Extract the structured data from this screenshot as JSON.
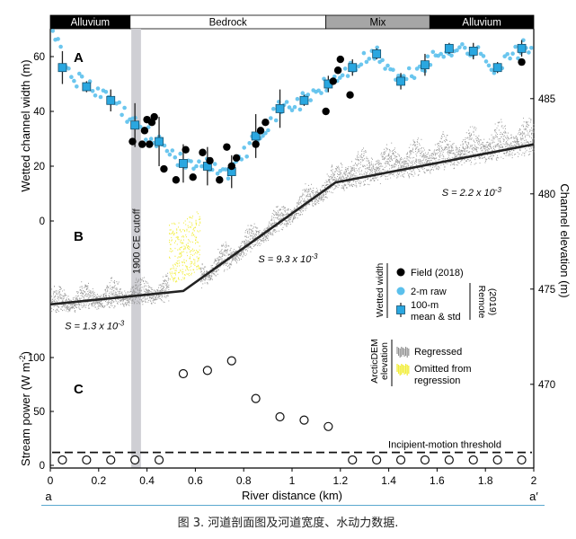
{
  "chart_data": {
    "type": "scatter",
    "xlabel": "River distance (km)",
    "x_start_label": "a",
    "x_end_label": "a′",
    "xlim": [
      0,
      2
    ],
    "x_ticks": [
      0,
      0.2,
      0.4,
      0.6,
      0.8,
      1,
      1.2,
      1.4,
      1.6,
      1.8,
      2
    ],
    "reaches": [
      {
        "label": "Alluvium",
        "from": 0.0,
        "to": 0.33,
        "fill": "#000000",
        "text_color": "#ffffff"
      },
      {
        "label": "Bedrock",
        "from": 0.33,
        "to": 1.14,
        "fill": "#ffffff",
        "text_color": "#000000"
      },
      {
        "label": "Mix",
        "from": 1.14,
        "to": 1.57,
        "fill": "#a6a6a6",
        "text_color": "#000000"
      },
      {
        "label": "Alluvium",
        "from": 1.57,
        "to": 2.0,
        "fill": "#000000",
        "text_color": "#ffffff"
      }
    ],
    "cutoff": {
      "label": "1900 CE cutoff",
      "from": 0.335,
      "to": 0.375,
      "color": "#cfcfd4"
    },
    "panels": {
      "A": {
        "label": "A",
        "ylabel": "Wetted channel width (m)",
        "ylim": [
          0,
          70
        ],
        "y_ticks": [
          0,
          20,
          40,
          60
        ],
        "field_2018": [
          [
            0.34,
            29
          ],
          [
            0.39,
            33
          ],
          [
            0.38,
            28
          ],
          [
            0.4,
            37
          ],
          [
            0.41,
            28
          ],
          [
            0.42,
            36
          ],
          [
            0.43,
            38
          ],
          [
            0.47,
            19
          ],
          [
            0.52,
            15
          ],
          [
            0.56,
            26
          ],
          [
            0.59,
            16
          ],
          [
            0.63,
            25
          ],
          [
            0.66,
            22
          ],
          [
            0.7,
            15
          ],
          [
            0.73,
            27
          ],
          [
            0.75,
            20
          ],
          [
            0.77,
            23
          ],
          [
            0.85,
            28
          ],
          [
            0.87,
            33
          ],
          [
            0.89,
            36
          ],
          [
            1.14,
            40
          ],
          [
            1.17,
            51
          ],
          [
            1.2,
            59
          ],
          [
            1.24,
            46
          ],
          [
            1.19,
            55
          ],
          [
            1.95,
            58
          ]
        ],
        "remote_mean_std": [
          [
            0.05,
            56,
            6
          ],
          [
            0.15,
            49,
            2
          ],
          [
            0.25,
            44,
            4
          ],
          [
            0.35,
            35,
            8
          ],
          [
            0.45,
            29,
            9
          ],
          [
            0.55,
            21,
            7
          ],
          [
            0.65,
            20,
            7
          ],
          [
            0.75,
            18,
            6
          ],
          [
            0.85,
            31,
            8
          ],
          [
            0.95,
            41,
            7
          ],
          [
            1.05,
            44,
            2
          ],
          [
            1.15,
            50,
            3
          ],
          [
            1.25,
            56,
            3
          ],
          [
            1.35,
            61,
            2
          ],
          [
            1.45,
            51,
            3
          ],
          [
            1.55,
            57,
            4
          ],
          [
            1.65,
            63,
            2
          ],
          [
            1.75,
            62,
            3
          ],
          [
            1.85,
            56,
            2
          ],
          [
            1.95,
            63,
            3
          ]
        ]
      },
      "B": {
        "label": "B",
        "ylabel": "Channel elevation (m)",
        "ylim": [
          471,
          487
        ],
        "y_ticks": [
          470,
          475,
          480,
          485
        ],
        "regression_line": [
          [
            0,
            474.2
          ],
          [
            0.55,
            474.9
          ],
          [
            1.18,
            480.6
          ],
          [
            2,
            482.6
          ]
        ],
        "omitted_from": 0.49,
        "omitted_to": 0.62,
        "slopes": [
          {
            "text": "S = 1.3 x 10",
            "exp": "-3",
            "x": 0.06,
            "y": 472.9
          },
          {
            "text": "S = 9.3 x 10",
            "exp": "-3",
            "x": 0.86,
            "y": 476.4
          },
          {
            "text": "S = 2.2 x 10",
            "exp": "-3",
            "x": 1.62,
            "y": 479.9
          }
        ]
      },
      "C": {
        "label": "C",
        "ylabel": "Stream power (W m",
        "ylabel_exp": "-2",
        "ylim": [
          0,
          120
        ],
        "y_ticks": [
          0,
          50,
          100
        ],
        "stream_power": [
          [
            0.05,
            5
          ],
          [
            0.15,
            5
          ],
          [
            0.25,
            5
          ],
          [
            0.35,
            5
          ],
          [
            0.45,
            5
          ],
          [
            0.55,
            85
          ],
          [
            0.65,
            88
          ],
          [
            0.75,
            97
          ],
          [
            0.85,
            62
          ],
          [
            0.95,
            45
          ],
          [
            1.05,
            42
          ],
          [
            1.15,
            36
          ],
          [
            1.25,
            5
          ],
          [
            1.35,
            5
          ],
          [
            1.45,
            5
          ],
          [
            1.55,
            5
          ],
          [
            1.65,
            5
          ],
          [
            1.75,
            5
          ],
          [
            1.85,
            5
          ],
          [
            1.95,
            5
          ]
        ],
        "threshold": 12,
        "threshold_label": "Incipient-motion threshold"
      }
    },
    "legend": {
      "width_group": "Wetted width",
      "remote_group": "Remote (2019)",
      "field": "Field (2018)",
      "raw": "2-m raw",
      "mean_line1": "100-m",
      "mean_line2": "mean & std",
      "dem_group": "ArcticDEM elevation",
      "regressed": "Regressed",
      "omitted_line1": "Omitted from",
      "omitted_line2": "regression"
    },
    "colors": {
      "raw": "#5bc0ec",
      "mean": "#2aa7e0",
      "field": "#000000",
      "dem": "#8a8a8a",
      "omitted": "#f2ee3c",
      "line": "#222222"
    }
  },
  "caption": "图 3. 河道剖面图及河道宽度、水动力数据."
}
